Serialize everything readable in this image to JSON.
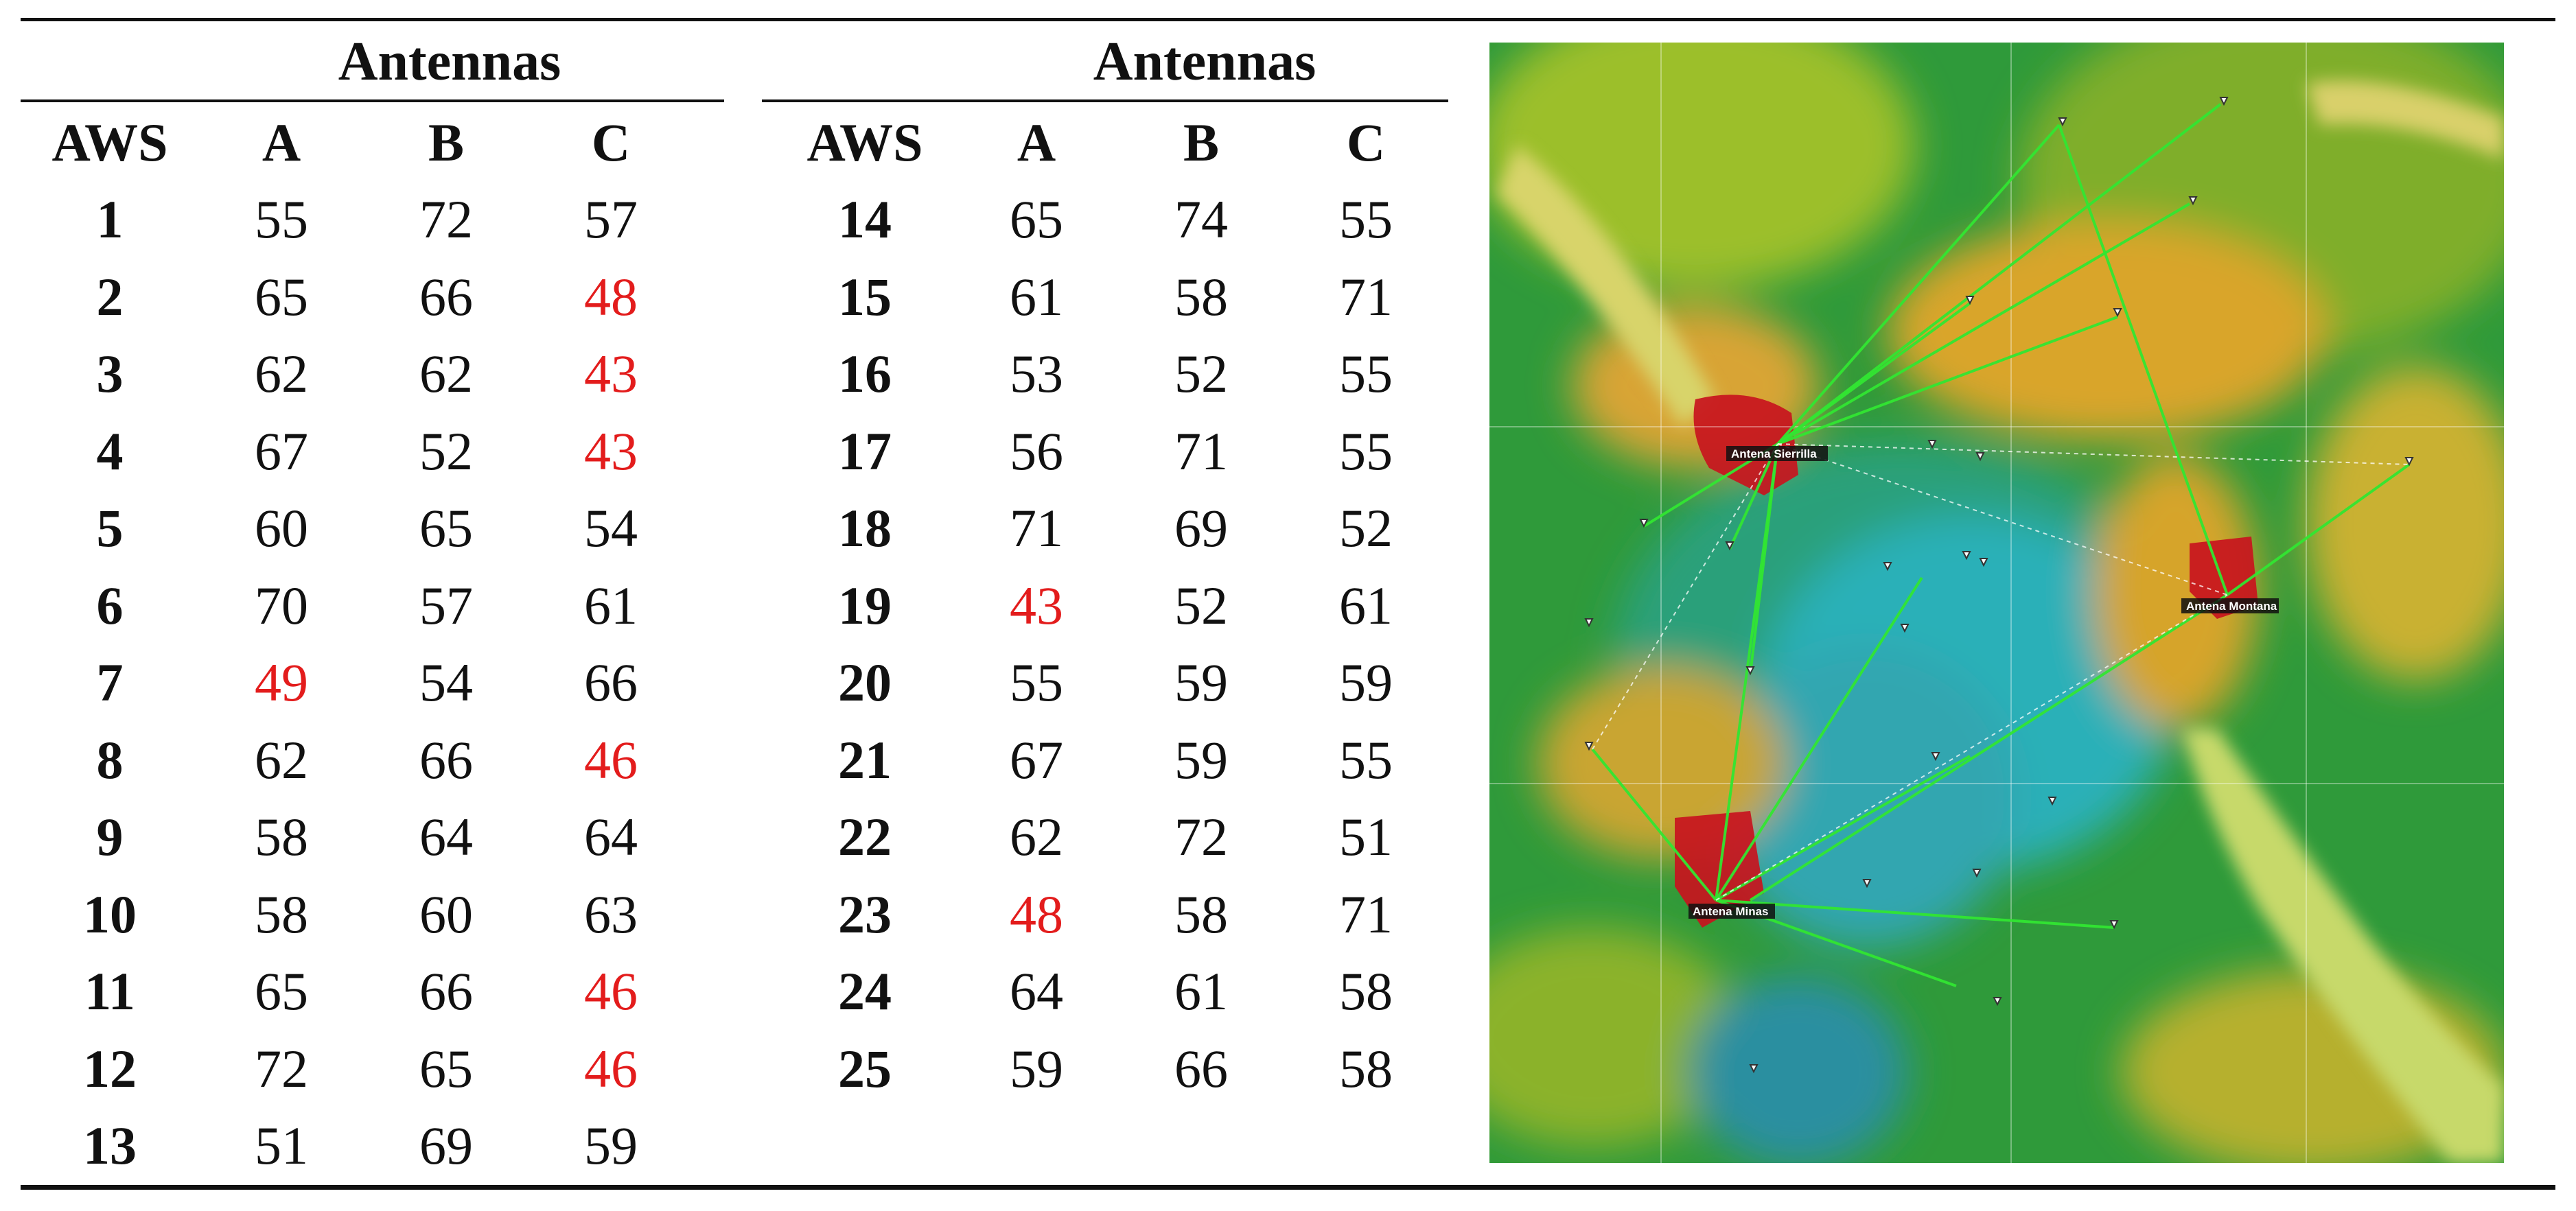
{
  "left_table": {
    "group_header": "Antennas",
    "columns": [
      "AWS",
      "A",
      "B",
      "C"
    ],
    "rows": [
      {
        "aws": "1",
        "a": "55",
        "b": "72",
        "c": "57",
        "a_low": false,
        "b_low": false,
        "c_low": false
      },
      {
        "aws": "2",
        "a": "65",
        "b": "66",
        "c": "48",
        "a_low": false,
        "b_low": false,
        "c_low": true
      },
      {
        "aws": "3",
        "a": "62",
        "b": "62",
        "c": "43",
        "a_low": false,
        "b_low": false,
        "c_low": true
      },
      {
        "aws": "4",
        "a": "67",
        "b": "52",
        "c": "43",
        "a_low": false,
        "b_low": false,
        "c_low": true
      },
      {
        "aws": "5",
        "a": "60",
        "b": "65",
        "c": "54",
        "a_low": false,
        "b_low": false,
        "c_low": false
      },
      {
        "aws": "6",
        "a": "70",
        "b": "57",
        "c": "61",
        "a_low": false,
        "b_low": false,
        "c_low": false
      },
      {
        "aws": "7",
        "a": "49",
        "b": "54",
        "c": "66",
        "a_low": true,
        "b_low": false,
        "c_low": false
      },
      {
        "aws": "8",
        "a": "62",
        "b": "66",
        "c": "46",
        "a_low": false,
        "b_low": false,
        "c_low": true
      },
      {
        "aws": "9",
        "a": "58",
        "b": "64",
        "c": "64",
        "a_low": false,
        "b_low": false,
        "c_low": false
      },
      {
        "aws": "10",
        "a": "58",
        "b": "60",
        "c": "63",
        "a_low": false,
        "b_low": false,
        "c_low": false
      },
      {
        "aws": "11",
        "a": "65",
        "b": "66",
        "c": "46",
        "a_low": false,
        "b_low": false,
        "c_low": true
      },
      {
        "aws": "12",
        "a": "72",
        "b": "65",
        "c": "46",
        "a_low": false,
        "b_low": false,
        "c_low": true
      },
      {
        "aws": "13",
        "a": "51",
        "b": "69",
        "c": "59",
        "a_low": false,
        "b_low": false,
        "c_low": false
      }
    ]
  },
  "right_table": {
    "group_header": "Antennas",
    "columns": [
      "AWS",
      "A",
      "B",
      "C"
    ],
    "rows": [
      {
        "aws": "14",
        "a": "65",
        "b": "74",
        "c": "55",
        "a_low": false,
        "b_low": false,
        "c_low": false
      },
      {
        "aws": "15",
        "a": "61",
        "b": "58",
        "c": "71",
        "a_low": false,
        "b_low": false,
        "c_low": false
      },
      {
        "aws": "16",
        "a": "53",
        "b": "52",
        "c": "55",
        "a_low": false,
        "b_low": false,
        "c_low": false
      },
      {
        "aws": "17",
        "a": "56",
        "b": "71",
        "c": "55",
        "a_low": false,
        "b_low": false,
        "c_low": false
      },
      {
        "aws": "18",
        "a": "71",
        "b": "69",
        "c": "52",
        "a_low": false,
        "b_low": false,
        "c_low": false
      },
      {
        "aws": "19",
        "a": "43",
        "b": "52",
        "c": "61",
        "a_low": true,
        "b_low": false,
        "c_low": false
      },
      {
        "aws": "20",
        "a": "55",
        "b": "59",
        "c": "59",
        "a_low": false,
        "b_low": false,
        "c_low": false
      },
      {
        "aws": "21",
        "a": "67",
        "b": "59",
        "c": "55",
        "a_low": false,
        "b_low": false,
        "c_low": false
      },
      {
        "aws": "22",
        "a": "62",
        "b": "72",
        "c": "51",
        "a_low": false,
        "b_low": false,
        "c_low": false
      },
      {
        "aws": "23",
        "a": "48",
        "b": "58",
        "c": "71",
        "a_low": true,
        "b_low": false,
        "c_low": false
      },
      {
        "aws": "24",
        "a": "64",
        "b": "61",
        "c": "58",
        "a_low": false,
        "b_low": false,
        "c_low": false
      },
      {
        "aws": "25",
        "a": "59",
        "b": "66",
        "c": "58",
        "a_low": false,
        "b_low": false,
        "c_low": false
      }
    ]
  },
  "colors": {
    "text": "#111111",
    "low_value": "#e31c1c",
    "coverage_link": "#32e632",
    "antenna_zone": "#c8141e"
  },
  "map": {
    "antennas": [
      {
        "label": "Antena Sierrilla"
      },
      {
        "label": "Antena Montana"
      },
      {
        "label": "Antena Minas"
      }
    ]
  }
}
